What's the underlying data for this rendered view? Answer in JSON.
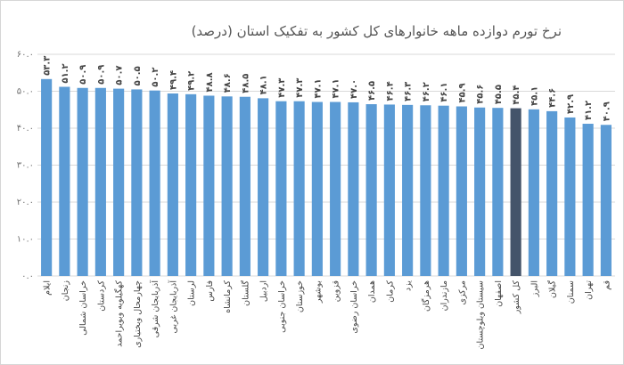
{
  "chart_data": {
    "type": "bar",
    "title": "نرخ تورم دوازده ماهه خانوارهای کل کشور به تفکیک استان (درصد)",
    "xlabel": "",
    "ylabel": "",
    "ylim": [
      0,
      60
    ],
    "y_ticks": [
      0,
      10,
      20,
      30,
      40,
      50,
      60
    ],
    "y_tick_labels": [
      "۰.۰",
      "۱۰.۰",
      "۲۰.۰",
      "۳۰.۰",
      "۴۰.۰",
      "۵۰.۰",
      "۶۰.۰"
    ],
    "grid": true,
    "legend": "none",
    "bar_color": "#5b9bd5",
    "highlight_color": "#44546a",
    "highlight_category": "کل کشور",
    "categories": [
      "ایلام",
      "زنجان",
      "خراسان شمالی",
      "کردستان",
      "کهگیلویه وبویراحمد",
      "چهارمحال وبختیاری",
      "آذربایجان شرقی",
      "آذربایجان غربی",
      "لرستان",
      "فارس",
      "کرمانشاه",
      "گلستان",
      "اردبیل",
      "خراسان جنوبی",
      "خوزستان",
      "بوشهر",
      "قزوین",
      "خراسان رضوی",
      "همدان",
      "کرمان",
      "یزد",
      "هرمزگان",
      "مازندران",
      "مرکزی",
      "سیستان وبلوچستان",
      "اصفهان",
      "کل کشور",
      "البرز",
      "گیلان",
      "سمنان",
      "تهران",
      "قم"
    ],
    "values": [
      53.3,
      51.2,
      50.9,
      50.9,
      50.7,
      50.5,
      50.2,
      49.4,
      49.2,
      48.8,
      48.6,
      48.5,
      48.1,
      47.3,
      47.3,
      47.1,
      47.1,
      47.0,
      46.5,
      46.4,
      46.3,
      46.2,
      46.1,
      45.9,
      45.6,
      45.5,
      45.4,
      45.1,
      44.6,
      42.9,
      41.2,
      40.9
    ],
    "value_labels": [
      "۵۳.۳",
      "۵۱.۲",
      "۵۰.۹",
      "۵۰.۹",
      "۵۰.۷",
      "۵۰.۵",
      "۵۰.۲",
      "۴۹.۴",
      "۴۹.۲",
      "۴۸.۸",
      "۴۸.۶",
      "۴۸.۵",
      "۴۸.۱",
      "۴۷.۳",
      "۴۷.۳",
      "۴۷.۱",
      "۴۷.۱",
      "۴۷.۰",
      "۴۶.۵",
      "۴۶.۴",
      "۴۶.۳",
      "۴۶.۲",
      "۴۶.۱",
      "۴۵.۹",
      "۴۵.۶",
      "۴۵.۵",
      "۴۵.۴",
      "۴۵.۱",
      "۴۴.۶",
      "۴۲.۹",
      "۴۱.۲",
      "۴۰.۹"
    ]
  }
}
